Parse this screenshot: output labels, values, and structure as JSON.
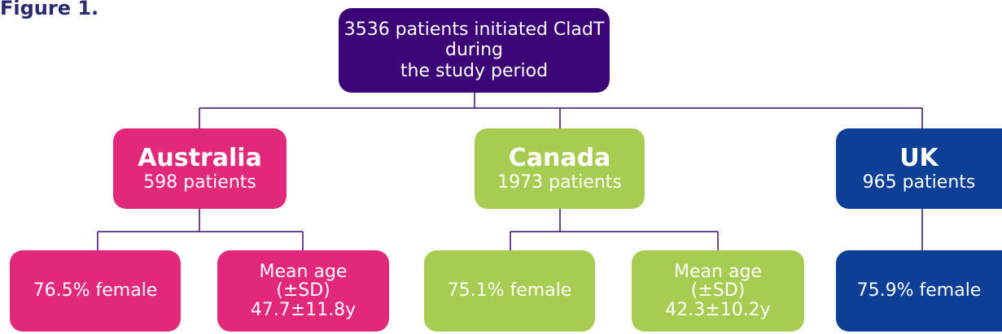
{
  "figure_label": "Figure 1.",
  "root": {
    "lines": [
      "3536 patients initiated CladT during",
      "the study period"
    ]
  },
  "countries": [
    {
      "name": "Australia",
      "patients": "598 patients",
      "details": [
        {
          "lines": [
            "76.5% female"
          ]
        },
        {
          "lines": [
            "Mean age",
            "(±SD)",
            "47.7±11.8y"
          ]
        }
      ]
    },
    {
      "name": "Canada",
      "patients": "1973 patients",
      "details": [
        {
          "lines": [
            "75.1% female"
          ]
        },
        {
          "lines": [
            "Mean age",
            "(±SD)",
            "42.3±10.2y"
          ]
        }
      ]
    },
    {
      "name": "UK",
      "patients": "965 patients",
      "details": [
        {
          "lines": [
            "75.9% female"
          ]
        }
      ]
    }
  ]
}
